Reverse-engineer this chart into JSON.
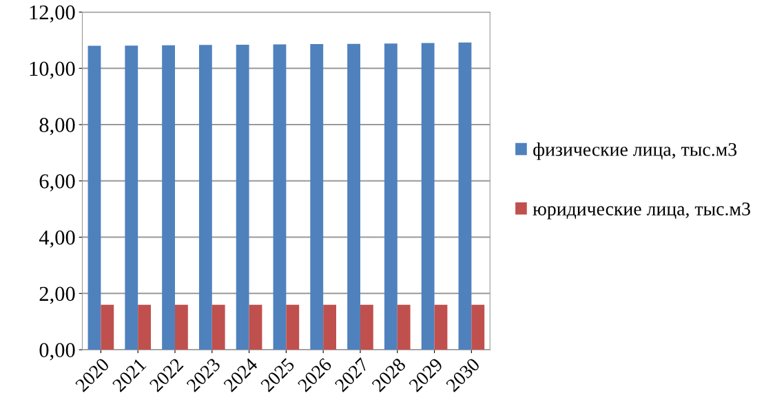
{
  "chart_data": {
    "type": "bar",
    "categories": [
      "2020",
      "2021",
      "2022",
      "2023",
      "2024",
      "2025",
      "2026",
      "2027",
      "2028",
      "2029",
      "2030"
    ],
    "series": [
      {
        "name": "физические лица, тыс.м3",
        "color": "#4f81bd",
        "values": [
          10.8,
          10.81,
          10.82,
          10.83,
          10.84,
          10.85,
          10.86,
          10.87,
          10.88,
          10.9,
          10.92
        ]
      },
      {
        "name": "юридические лица, тыс.м3",
        "color": "#c0504d",
        "values": [
          1.6,
          1.6,
          1.6,
          1.6,
          1.6,
          1.6,
          1.6,
          1.6,
          1.6,
          1.6,
          1.6
        ]
      }
    ],
    "ylim": [
      0,
      12
    ],
    "yticks": [
      {
        "value": 0,
        "label": "0,00"
      },
      {
        "value": 2,
        "label": "2,00"
      },
      {
        "value": 4,
        "label": "4,00"
      },
      {
        "value": 6,
        "label": "6,00"
      },
      {
        "value": 8,
        "label": "8,00"
      },
      {
        "value": 10,
        "label": "10,00"
      },
      {
        "value": 12,
        "label": "12,00"
      }
    ],
    "grid": "y",
    "legend": "right"
  }
}
